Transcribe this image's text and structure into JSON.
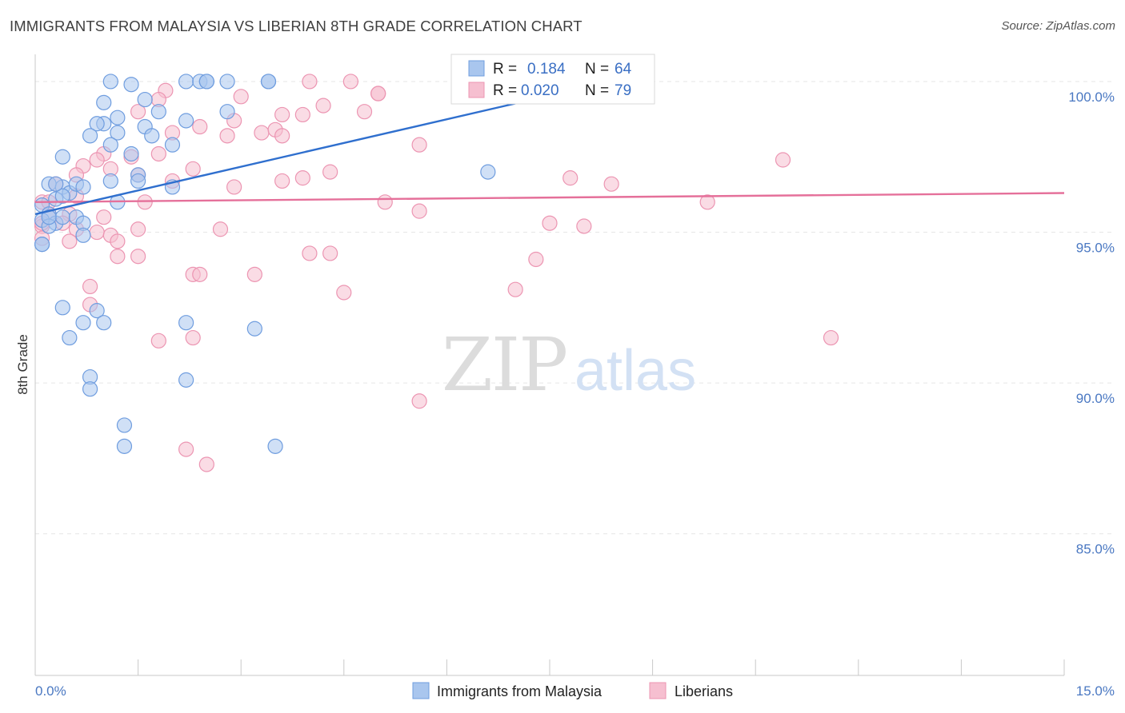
{
  "header": {
    "title": "IMMIGRANTS FROM MALAYSIA VS LIBERIAN 8TH GRADE CORRELATION CHART",
    "source": "Source: ZipAtlas.com"
  },
  "watermark": {
    "zip": "ZIP",
    "atlas": "atlas"
  },
  "colors": {
    "blue_fill": "#a9c6ee",
    "blue_stroke": "#6f9ddf",
    "blue_line": "#2f6fce",
    "pink_fill": "#f6bfd0",
    "pink_stroke": "#ec95b2",
    "pink_line": "#e5709a",
    "tick_text": "#4a78c2",
    "grid": "#e6e6e6"
  },
  "chart_data": {
    "type": "scatter",
    "title": "IMMIGRANTS FROM MALAYSIA VS LIBERIAN 8TH GRADE CORRELATION CHART",
    "xlabel": "",
    "ylabel": "8th Grade",
    "xlim": [
      0,
      15
    ],
    "ylim": [
      80.3,
      100.9
    ],
    "x_tick_labels": [
      "0.0%",
      "15.0%"
    ],
    "y_ticks": [
      85,
      90,
      95,
      100
    ],
    "y_tick_labels": [
      "85.0%",
      "90.0%",
      "95.0%",
      "100.0%"
    ],
    "grid": true,
    "legend_position": "top-center",
    "legend": [
      {
        "r_label": "R =",
        "r_value": "0.184",
        "n_label": "N =",
        "n_value": "64"
      },
      {
        "r_label": "R =",
        "r_value": "0.020",
        "n_label": "N =",
        "n_value": "79"
      }
    ],
    "series": [
      {
        "name": "Immigrants from Malaysia",
        "color": "#a9c6ee",
        "trend": {
          "x0": 0.0,
          "y0": 95.6,
          "x1": 8.2,
          "y1": 99.9
        },
        "points": [
          [
            1.1,
            100.0
          ],
          [
            1.4,
            99.9
          ],
          [
            1.6,
            99.4
          ],
          [
            2.2,
            100.0
          ],
          [
            2.4,
            100.0
          ],
          [
            2.5,
            100.0
          ],
          [
            2.8,
            100.0
          ],
          [
            3.4,
            100.0
          ],
          [
            3.4,
            100.0
          ],
          [
            2.5,
            100.0
          ],
          [
            1.0,
            99.3
          ],
          [
            1.2,
            98.8
          ],
          [
            1.0,
            98.6
          ],
          [
            0.9,
            98.6
          ],
          [
            1.2,
            98.3
          ],
          [
            1.6,
            98.5
          ],
          [
            1.7,
            98.2
          ],
          [
            1.8,
            99.0
          ],
          [
            2.2,
            98.7
          ],
          [
            2.8,
            99.0
          ],
          [
            0.8,
            98.2
          ],
          [
            1.1,
            97.9
          ],
          [
            1.4,
            97.6
          ],
          [
            2.0,
            97.9
          ],
          [
            0.4,
            97.5
          ],
          [
            1.5,
            96.9
          ],
          [
            1.1,
            96.7
          ],
          [
            1.5,
            96.7
          ],
          [
            2.0,
            96.5
          ],
          [
            6.6,
            97.0
          ],
          [
            0.2,
            96.6
          ],
          [
            0.4,
            96.5
          ],
          [
            0.5,
            96.3
          ],
          [
            0.6,
            96.6
          ],
          [
            0.7,
            96.5
          ],
          [
            0.3,
            96.1
          ],
          [
            0.1,
            95.9
          ],
          [
            0.2,
            95.6
          ],
          [
            0.1,
            95.4
          ],
          [
            0.3,
            95.3
          ],
          [
            0.4,
            95.5
          ],
          [
            0.6,
            95.5
          ],
          [
            0.7,
            95.3
          ],
          [
            1.2,
            96.0
          ],
          [
            0.7,
            94.9
          ],
          [
            0.1,
            94.6
          ],
          [
            0.1,
            94.6
          ],
          [
            0.2,
            95.2
          ],
          [
            0.4,
            96.2
          ],
          [
            0.2,
            95.5
          ],
          [
            0.4,
            92.5
          ],
          [
            0.9,
            92.4
          ],
          [
            0.7,
            92.0
          ],
          [
            1.0,
            92.0
          ],
          [
            2.2,
            92.0
          ],
          [
            3.2,
            91.8
          ],
          [
            0.5,
            91.5
          ],
          [
            0.8,
            90.2
          ],
          [
            0.8,
            89.8
          ],
          [
            2.2,
            90.1
          ],
          [
            1.3,
            88.6
          ],
          [
            1.3,
            87.9
          ],
          [
            3.5,
            87.9
          ],
          [
            0.3,
            96.6
          ]
        ]
      },
      {
        "name": "Liberians",
        "color": "#f6bfd0",
        "trend": {
          "x0": 0.0,
          "y0": 96.0,
          "x1": 15.0,
          "y1": 96.3
        },
        "points": [
          [
            4.0,
            100.0
          ],
          [
            4.6,
            100.0
          ],
          [
            5.0,
            99.6
          ],
          [
            5.0,
            99.6
          ],
          [
            3.0,
            99.5
          ],
          [
            1.9,
            99.7
          ],
          [
            1.8,
            99.4
          ],
          [
            4.2,
            99.2
          ],
          [
            4.8,
            99.0
          ],
          [
            3.6,
            98.9
          ],
          [
            3.9,
            98.9
          ],
          [
            2.9,
            98.7
          ],
          [
            1.5,
            99.0
          ],
          [
            2.4,
            98.5
          ],
          [
            2.8,
            98.2
          ],
          [
            3.3,
            98.3
          ],
          [
            3.5,
            98.4
          ],
          [
            3.6,
            98.2
          ],
          [
            2.0,
            98.3
          ],
          [
            5.6,
            97.9
          ],
          [
            1.0,
            97.6
          ],
          [
            1.4,
            97.5
          ],
          [
            1.8,
            97.6
          ],
          [
            0.9,
            97.4
          ],
          [
            0.7,
            97.2
          ],
          [
            1.1,
            97.1
          ],
          [
            2.3,
            97.1
          ],
          [
            0.6,
            96.9
          ],
          [
            1.5,
            96.9
          ],
          [
            2.0,
            96.7
          ],
          [
            3.6,
            96.7
          ],
          [
            3.9,
            96.8
          ],
          [
            4.3,
            97.0
          ],
          [
            2.9,
            96.5
          ],
          [
            7.8,
            96.8
          ],
          [
            8.4,
            96.6
          ],
          [
            10.9,
            97.4
          ],
          [
            0.3,
            96.6
          ],
          [
            0.6,
            96.2
          ],
          [
            1.6,
            96.0
          ],
          [
            5.1,
            96.0
          ],
          [
            9.8,
            96.0
          ],
          [
            0.1,
            96.0
          ],
          [
            0.2,
            95.6
          ],
          [
            0.5,
            95.6
          ],
          [
            1.0,
            95.5
          ],
          [
            5.6,
            95.7
          ],
          [
            7.5,
            95.3
          ],
          [
            8.0,
            95.2
          ],
          [
            0.1,
            95.2
          ],
          [
            0.4,
            95.3
          ],
          [
            0.6,
            95.1
          ],
          [
            0.9,
            95.0
          ],
          [
            1.1,
            94.9
          ],
          [
            1.2,
            94.7
          ],
          [
            1.5,
            95.1
          ],
          [
            2.7,
            95.1
          ],
          [
            0.1,
            94.8
          ],
          [
            0.5,
            94.7
          ],
          [
            1.2,
            94.2
          ],
          [
            1.5,
            94.2
          ],
          [
            4.0,
            94.3
          ],
          [
            4.3,
            94.3
          ],
          [
            7.3,
            94.1
          ],
          [
            2.3,
            93.6
          ],
          [
            2.4,
            93.6
          ],
          [
            3.2,
            93.6
          ],
          [
            0.8,
            93.2
          ],
          [
            4.5,
            93.0
          ],
          [
            7.0,
            93.1
          ],
          [
            0.8,
            92.6
          ],
          [
            2.3,
            91.5
          ],
          [
            1.8,
            91.4
          ],
          [
            11.6,
            91.5
          ],
          [
            5.6,
            89.4
          ],
          [
            2.2,
            87.8
          ],
          [
            2.5,
            87.3
          ],
          [
            0.2,
            96.0
          ],
          [
            0.1,
            95.3
          ]
        ]
      }
    ]
  },
  "bottom_legend": [
    {
      "label": "Immigrants from Malaysia"
    },
    {
      "label": "Liberians"
    }
  ]
}
